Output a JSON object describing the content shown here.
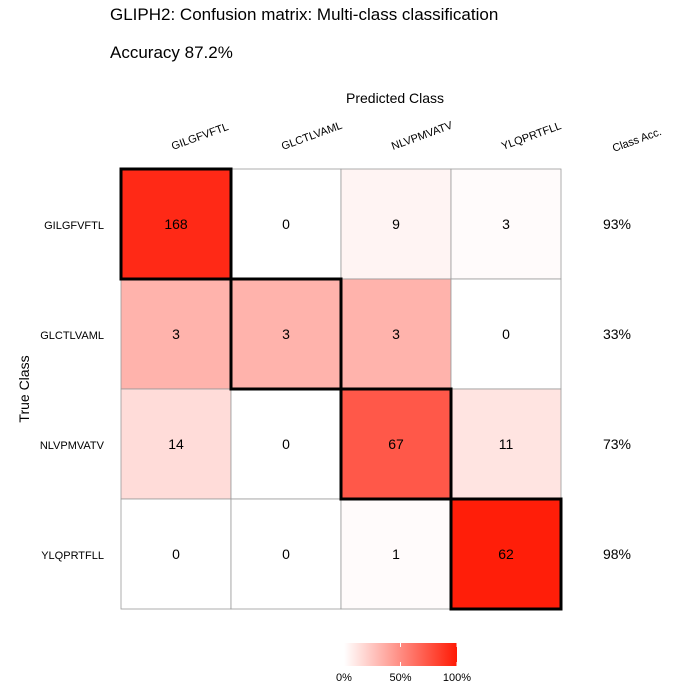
{
  "chart_data": {
    "type": "heatmap",
    "title": "GLIPH2: Confusion matrix: Multi-class classification",
    "subtitle": "Accuracy 87.2%",
    "xlabel": "Predicted Class",
    "ylabel": "True Class",
    "predicted_classes": [
      "GILGFVFTL",
      "GLCTLVAML",
      "NLVPMVATV",
      "YLQPRTFLL"
    ],
    "true_classes": [
      "GILGFVFTL",
      "GLCTLVAML",
      "NLVPMVATV",
      "YLQPRTFLL"
    ],
    "matrix": [
      [
        168,
        0,
        9,
        3
      ],
      [
        3,
        3,
        3,
        0
      ],
      [
        14,
        0,
        67,
        11
      ],
      [
        0,
        0,
        1,
        62
      ]
    ],
    "class_acc_label": "Class Acc.",
    "class_acc": [
      "93%",
      "33%",
      "73%",
      "98%"
    ],
    "legend": {
      "ticks": [
        "0%",
        "50%",
        "100%"
      ],
      "low_color": "#ffffff",
      "high_color": "#ff1a05"
    },
    "border_color": "#000000"
  }
}
